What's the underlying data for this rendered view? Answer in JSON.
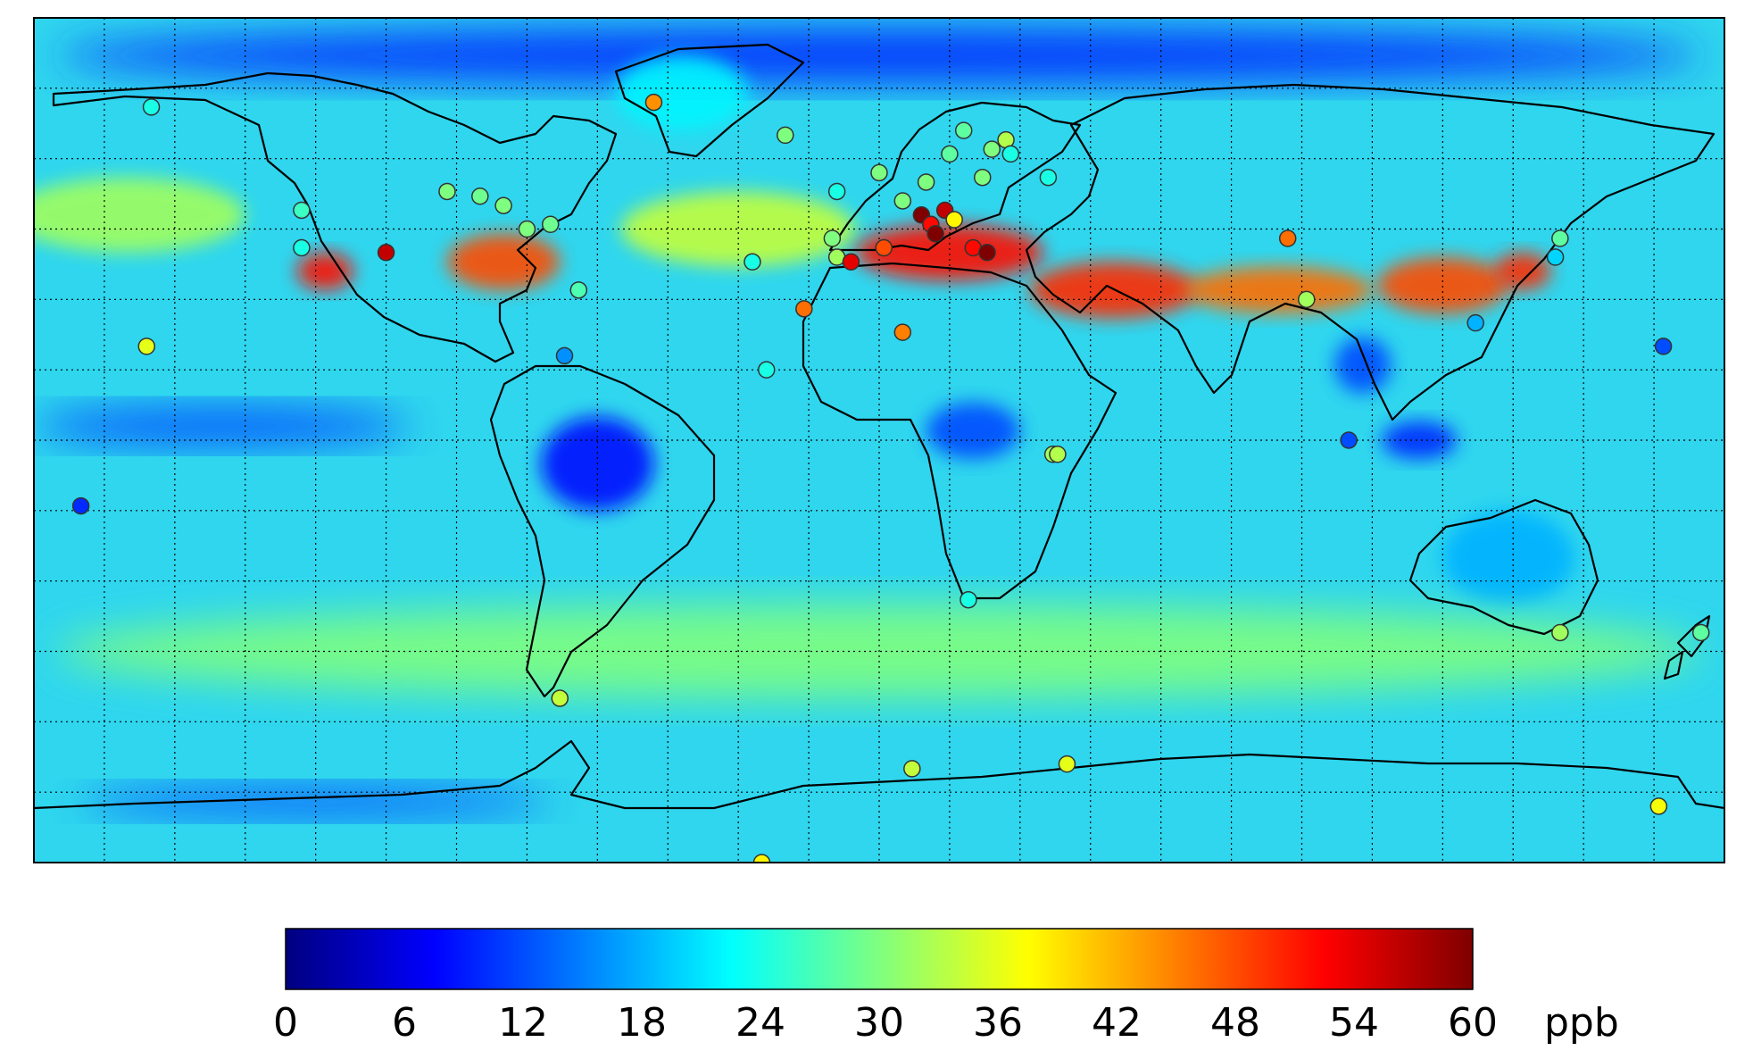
{
  "colorbar": {
    "min": 0,
    "max": 60,
    "ticks": [
      "0",
      "6",
      "12",
      "18",
      "24",
      "30",
      "36",
      "42",
      "48",
      "54",
      "60"
    ],
    "unit": "ppb",
    "colormap": "jet",
    "stops": [
      "#00007f",
      "#0000ff",
      "#007fff",
      "#00ffff",
      "#7fff7f",
      "#ffff00",
      "#ff7f00",
      "#ff0000",
      "#7f0000"
    ]
  },
  "map": {
    "projection": "equirectangular",
    "lon_range": [
      -180,
      180
    ],
    "lat_range": [
      -90,
      90
    ],
    "grid_spacing_deg": 15,
    "grid": true,
    "ocean_background_color": "#2fd6ee",
    "coastline_color": "#000000",
    "concentration_regions": [
      {
        "name": "arctic-low",
        "lon": 0,
        "lat": 82,
        "rx": 175,
        "ry": 6,
        "value": 10
      },
      {
        "name": "greenland",
        "lon": -42,
        "lat": 74,
        "rx": 14,
        "ry": 8,
        "value": 22
      },
      {
        "name": "north-pacific",
        "lon": -160,
        "lat": 48,
        "rx": 25,
        "ry": 8,
        "value": 32
      },
      {
        "name": "north-atlantic",
        "lon": -30,
        "lat": 45,
        "rx": 25,
        "ry": 8,
        "value": 34
      },
      {
        "name": "us-west",
        "lon": -118,
        "lat": 36,
        "rx": 6,
        "ry": 4,
        "value": 52
      },
      {
        "name": "us-east",
        "lon": -80,
        "lat": 38,
        "rx": 12,
        "ry": 6,
        "value": 48
      },
      {
        "name": "mediterranean",
        "lon": 15,
        "lat": 40,
        "rx": 20,
        "ry": 6,
        "value": 52
      },
      {
        "name": "middle-east",
        "lon": 50,
        "lat": 32,
        "rx": 18,
        "ry": 6,
        "value": 50
      },
      {
        "name": "south-asia-belt",
        "lon": 85,
        "lat": 32,
        "rx": 20,
        "ry": 5,
        "value": 46
      },
      {
        "name": "east-asia",
        "lon": 120,
        "lat": 33,
        "rx": 14,
        "ry": 6,
        "value": 48
      },
      {
        "name": "japan",
        "lon": 137,
        "lat": 36,
        "rx": 6,
        "ry": 4,
        "value": 50
      },
      {
        "name": "tropical-pacific-low",
        "lon": -140,
        "lat": 3,
        "rx": 40,
        "ry": 4,
        "value": 12
      },
      {
        "name": "amazon-low",
        "lon": -60,
        "lat": -5,
        "rx": 12,
        "ry": 10,
        "value": 8
      },
      {
        "name": "central-africa-low",
        "lon": 20,
        "lat": 2,
        "rx": 10,
        "ry": 6,
        "value": 12
      },
      {
        "name": "se-asia-low",
        "lon": 103,
        "lat": 16,
        "rx": 6,
        "ry": 6,
        "value": 12
      },
      {
        "name": "maritime-low",
        "lon": 115,
        "lat": 0,
        "rx": 8,
        "ry": 4,
        "value": 10
      },
      {
        "name": "australia",
        "lon": 134,
        "lat": -25,
        "rx": 14,
        "ry": 10,
        "value": 18
      },
      {
        "name": "southern-ocean-band",
        "lon": 0,
        "lat": -45,
        "rx": 175,
        "ry": 10,
        "value": 30
      },
      {
        "name": "antarctica-coast-low",
        "lon": -120,
        "lat": -77,
        "rx": 50,
        "ry": 3,
        "value": 12
      }
    ]
  },
  "stations": [
    {
      "lon": -155,
      "lat": 71,
      "value": 24
    },
    {
      "lon": -48,
      "lat": 72,
      "value": 44
    },
    {
      "lon": -20,
      "lat": 65,
      "value": 30
    },
    {
      "lon": -123,
      "lat": 49,
      "value": 26
    },
    {
      "lon": -123,
      "lat": 41,
      "value": 24
    },
    {
      "lon": -105,
      "lat": 40,
      "value": 56
    },
    {
      "lon": -92,
      "lat": 53,
      "value": 30
    },
    {
      "lon": -85,
      "lat": 52,
      "value": 29
    },
    {
      "lon": -80,
      "lat": 50,
      "value": 30
    },
    {
      "lon": -75,
      "lat": 45,
      "value": 30
    },
    {
      "lon": -70,
      "lat": 46,
      "value": 29
    },
    {
      "lon": -64,
      "lat": 32,
      "value": 27
    },
    {
      "lon": -156,
      "lat": 20,
      "value": 36
    },
    {
      "lon": -67,
      "lat": 18,
      "value": 16
    },
    {
      "lon": -170,
      "lat": -14,
      "value": 10
    },
    {
      "lon": -27,
      "lat": 38,
      "value": 24
    },
    {
      "lon": -16,
      "lat": 28,
      "value": 46
    },
    {
      "lon": -24,
      "lat": 15,
      "value": 24
    },
    {
      "lon": 5,
      "lat": 23,
      "value": 45
    },
    {
      "lon": -9,
      "lat": 53,
      "value": 24
    },
    {
      "lon": -10,
      "lat": 43,
      "value": 30
    },
    {
      "lon": -9,
      "lat": 39,
      "value": 32
    },
    {
      "lon": -6,
      "lat": 38,
      "value": 54
    },
    {
      "lon": 1,
      "lat": 41,
      "value": 48
    },
    {
      "lon": 0,
      "lat": 57,
      "value": 30
    },
    {
      "lon": 5,
      "lat": 51,
      "value": 30
    },
    {
      "lon": 9,
      "lat": 48,
      "value": 60
    },
    {
      "lon": 11,
      "lat": 46,
      "value": 52
    },
    {
      "lon": 12,
      "lat": 44,
      "value": 60
    },
    {
      "lon": 14,
      "lat": 49,
      "value": 56
    },
    {
      "lon": 16,
      "lat": 47,
      "value": 38
    },
    {
      "lon": 10,
      "lat": 55,
      "value": 30
    },
    {
      "lon": 15,
      "lat": 61,
      "value": 28
    },
    {
      "lon": 18,
      "lat": 66,
      "value": 28
    },
    {
      "lon": 24,
      "lat": 62,
      "value": 30
    },
    {
      "lon": 27,
      "lat": 64,
      "value": 33
    },
    {
      "lon": 28,
      "lat": 61,
      "value": 24
    },
    {
      "lon": 22,
      "lat": 56,
      "value": 30
    },
    {
      "lon": 20,
      "lat": 41,
      "value": 52
    },
    {
      "lon": 23,
      "lat": 40,
      "value": 60
    },
    {
      "lon": 36,
      "lat": 56,
      "value": 24
    },
    {
      "lon": 87,
      "lat": 43,
      "value": 46
    },
    {
      "lon": 91,
      "lat": 30,
      "value": 32
    },
    {
      "lon": 127,
      "lat": 25,
      "value": 18
    },
    {
      "lon": 145,
      "lat": 43,
      "value": 28
    },
    {
      "lon": 144,
      "lat": 39,
      "value": 20
    },
    {
      "lon": 167,
      "lat": 20,
      "value": 12
    },
    {
      "lon": 100,
      "lat": 0,
      "value": 12
    },
    {
      "lon": 37,
      "lat": -3,
      "value": 32
    },
    {
      "lon": 38,
      "lat": -3,
      "value": 33
    },
    {
      "lon": 19,
      "lat": -34,
      "value": 24
    },
    {
      "lon": 145,
      "lat": -41,
      "value": 32
    },
    {
      "lon": 175,
      "lat": -41,
      "value": 28
    },
    {
      "lon": -68,
      "lat": -55,
      "value": 34
    },
    {
      "lon": 7,
      "lat": -70,
      "value": 34
    },
    {
      "lon": 40,
      "lat": -69,
      "value": 36
    },
    {
      "lon": 166,
      "lat": -78,
      "value": 37
    },
    {
      "lon": -25,
      "lat": -90,
      "value": 38
    }
  ]
}
